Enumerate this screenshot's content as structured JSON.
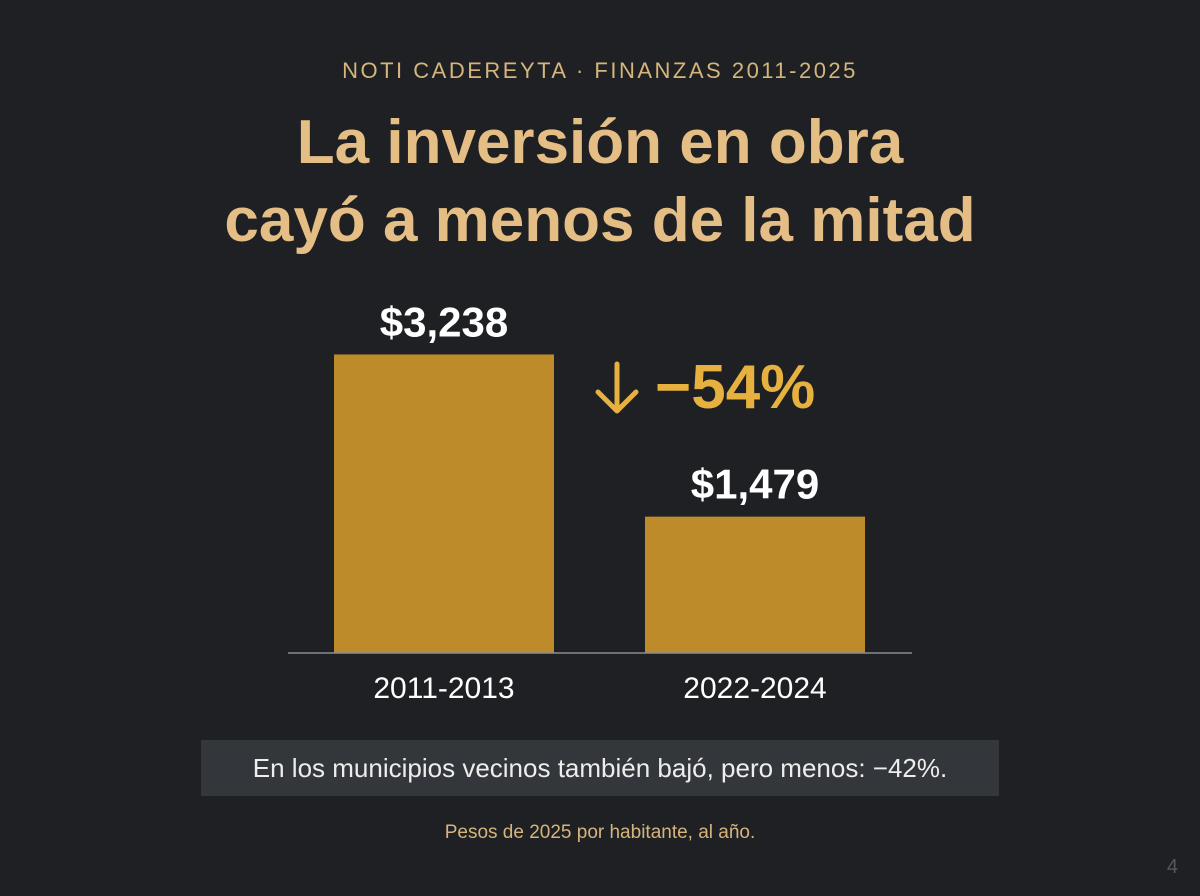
{
  "header": {
    "kicker": "NOTI CADEREYTA · FINANZAS 2011-2025",
    "title_line1": "La inversión en obra",
    "title_line2": "cayó a menos de la mitad"
  },
  "chart_data": {
    "type": "bar",
    "categories": [
      "2011-2013",
      "2022-2024"
    ],
    "values": [
      3238,
      1479
    ],
    "value_labels": [
      "$3,238",
      "$1,479"
    ],
    "change_label": "−54%",
    "bar_color": "#be8b2b",
    "change_color": "#e6b13e",
    "grid": false,
    "legend": "none"
  },
  "note": {
    "text": "En los municipios vecinos también bajó, pero menos: −42%."
  },
  "footnote": "Pesos de 2025 por habitante, al año.",
  "page_number": "4",
  "colors": {
    "background": "#1e2024",
    "accent": "#e4be84",
    "bar": "#be8b2b"
  }
}
